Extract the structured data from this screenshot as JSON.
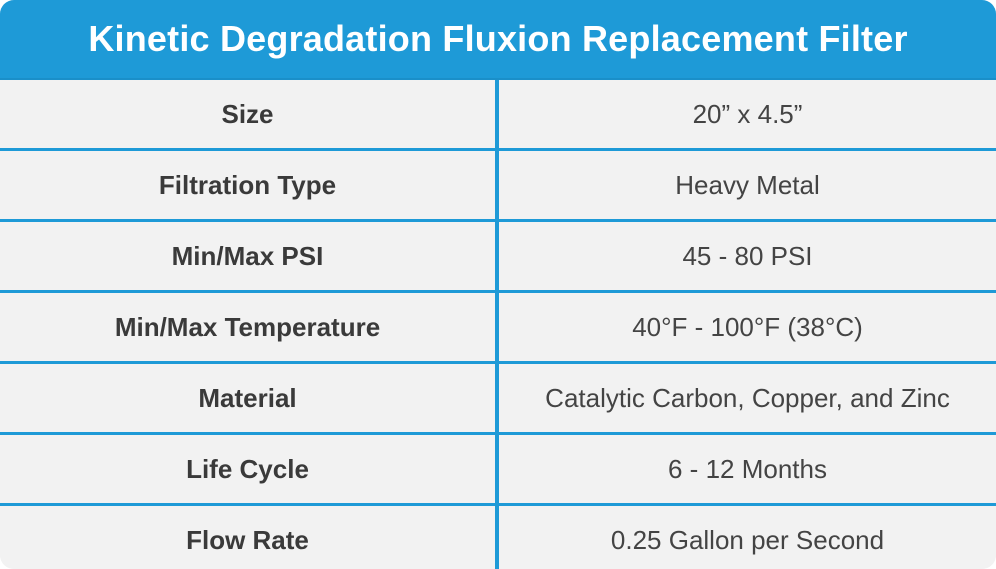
{
  "title": "Kinetic Degradation Fluxion Replacement Filter",
  "rows": [
    {
      "label": "Size",
      "value": "20” x 4.5”"
    },
    {
      "label": "Filtration Type",
      "value": "Heavy Metal"
    },
    {
      "label": "Min/Max PSI",
      "value": "45 - 80 PSI"
    },
    {
      "label": "Min/Max Temperature",
      "value": "40°F - 100°F (38°C)"
    },
    {
      "label": "Material",
      "value": "Catalytic Carbon, Copper, and Zinc"
    },
    {
      "label": "Life Cycle",
      "value": "6 - 12 Months"
    },
    {
      "label": "Flow Rate",
      "value": "0.25 Gallon per Second"
    }
  ],
  "colors": {
    "accent": "#1e9ad7",
    "row_background": "#f2f2f2",
    "text": "#3a3a3a",
    "header_text": "#ffffff"
  }
}
